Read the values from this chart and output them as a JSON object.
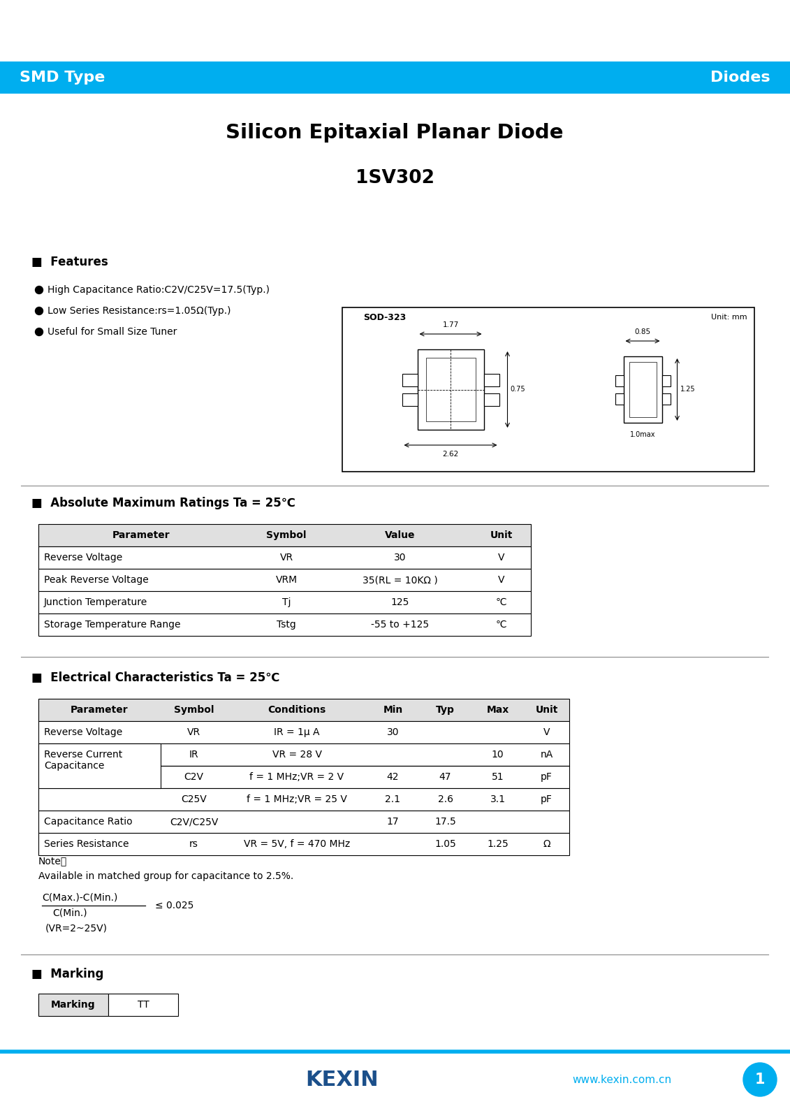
{
  "title1": "Silicon Epitaxial Planar Diode",
  "title2": "1SV302",
  "header_left": "SMD Type",
  "header_right": "Diodes",
  "header_bg": "#00AEEF",
  "header_text_color": "#FFFFFF",
  "features_title": "■  Features",
  "features": [
    "High Capacitance Ratio:C2V/C25V=17.5(Typ.)",
    "Low Series Resistance:rs=1.05Ω(Typ.)",
    "Useful for Small Size Tuner"
  ],
  "abs_title": "■  Absolute Maximum Ratings Ta = 25℃",
  "abs_headers": [
    "Parameter",
    "Symbol",
    "Value",
    "Unit"
  ],
  "abs_rows": [
    [
      "Reverse Voltage",
      "VR",
      "30",
      "V"
    ],
    [
      "Peak Reverse Voltage",
      "VRM",
      "35(RL = 10KΩ )",
      "V"
    ],
    [
      "Junction Temperature",
      "Tj",
      "125",
      "℃"
    ],
    [
      "Storage Temperature Range",
      "Tstg",
      "-55 to +125",
      "℃"
    ]
  ],
  "elec_title": "■  Electrical Characteristics Ta = 25℃",
  "elec_headers": [
    "Parameter",
    "Symbol",
    "Conditions",
    "Min",
    "Typ",
    "Max",
    "Unit"
  ],
  "elec_rows": [
    [
      "Reverse Voltage",
      "VR",
      "IR = 1μ A",
      "30",
      "",
      "",
      "V"
    ],
    [
      "Reverse Current",
      "IR",
      "VR = 28 V",
      "",
      "",
      "10",
      "nA"
    ],
    [
      "Capacitance",
      "C2V",
      "f = 1 MHz;VR = 2 V",
      "42",
      "47",
      "51",
      "pF"
    ],
    [
      "Capacitance",
      "C25V",
      "f = 1 MHz;VR = 25 V",
      "2.1",
      "2.6",
      "3.1",
      "pF"
    ],
    [
      "Capacitance Ratio",
      "C2V/C25V",
      "",
      "17",
      "17.5",
      "",
      ""
    ],
    [
      "Series Resistance",
      "rs",
      "VR = 5V, f = 470 MHz",
      "",
      "1.05",
      "1.25",
      "Ω"
    ]
  ],
  "note_line1": "Note：",
  "note_line2": "Available in matched group for capacitance to 2.5%.",
  "marking_title": "■  Marking",
  "marking_header_col1": "Marking",
  "marking_header_col2": "TT",
  "footer_line_color": "#00AEEF",
  "footer_url": "www.kexin.com.cn",
  "page_num": "1",
  "bg_color": "#FFFFFF",
  "text_color": "#000000"
}
